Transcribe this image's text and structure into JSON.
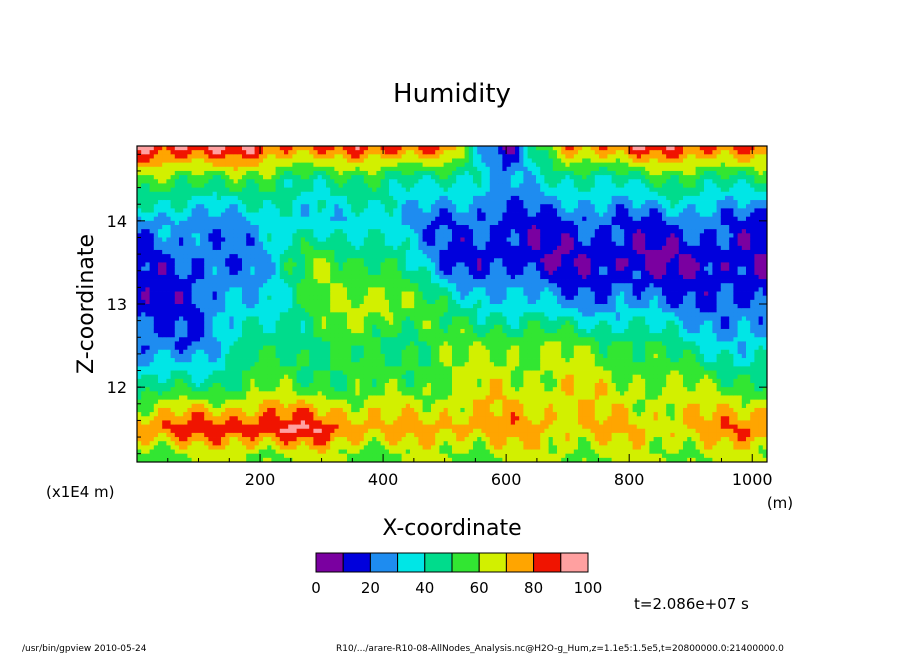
{
  "chart_data": {
    "type": "heatmap",
    "title": "Humidity",
    "xlabel": "X-coordinate",
    "ylabel": "Z-coordinate",
    "x_unit": "(m)",
    "y_unit": "(x1E4 m)",
    "xlim": [
      0,
      1024
    ],
    "ylim": [
      11.1,
      14.9
    ],
    "x_ticks": [
      200,
      400,
      600,
      800,
      1000
    ],
    "y_ticks": [
      12,
      13,
      14
    ],
    "colorbar": {
      "levels": [
        0,
        10,
        20,
        30,
        40,
        50,
        60,
        70,
        80,
        90,
        100
      ],
      "tick_labels": [
        "0",
        "20",
        "40",
        "60",
        "80",
        "100"
      ],
      "colors": [
        "#7a00a0",
        "#0000dc",
        "#1e8cf0",
        "#00e6e6",
        "#00dc8c",
        "#32e632",
        "#d2f000",
        "#ffa500",
        "#f01400",
        "#ffa0a0"
      ]
    },
    "humidity_grid": {
      "x": [
        0,
        100,
        200,
        300,
        400,
        500,
        600,
        700,
        800,
        900,
        1024
      ],
      "z": [
        11.2,
        11.5,
        12.0,
        12.5,
        13.0,
        13.5,
        14.0,
        14.5,
        14.9
      ],
      "values": [
        [
          58,
          60,
          62,
          62,
          58,
          60,
          62,
          62,
          60,
          62,
          60
        ],
        [
          82,
          85,
          90,
          88,
          72,
          75,
          75,
          72,
          70,
          72,
          85
        ],
        [
          42,
          48,
          55,
          55,
          52,
          60,
          65,
          66,
          62,
          60,
          55
        ],
        [
          18,
          25,
          45,
          50,
          48,
          55,
          60,
          58,
          55,
          40,
          30
        ],
        [
          15,
          18,
          35,
          55,
          70,
          45,
          35,
          28,
          25,
          22,
          15
        ],
        [
          18,
          18,
          28,
          60,
          50,
          20,
          12,
          12,
          8,
          10,
          12
        ],
        [
          28,
          25,
          30,
          35,
          30,
          22,
          15,
          18,
          20,
          22,
          18
        ],
        [
          55,
          55,
          52,
          45,
          48,
          40,
          30,
          40,
          45,
          50,
          45
        ],
        [
          90,
          92,
          88,
          80,
          88,
          80,
          8,
          78,
          85,
          88,
          80
        ]
      ]
    },
    "annotations": {
      "time": "t=2.086e+07 s",
      "footer_left": "/usr/bin/gpview  2010-05-24",
      "footer_right": "R10/.../arare-R10-08-AllNodes_Analysis.nc@H2O-g_Hum,z=1.1e5:1.5e5,t=20800000.0:21400000.0"
    }
  }
}
